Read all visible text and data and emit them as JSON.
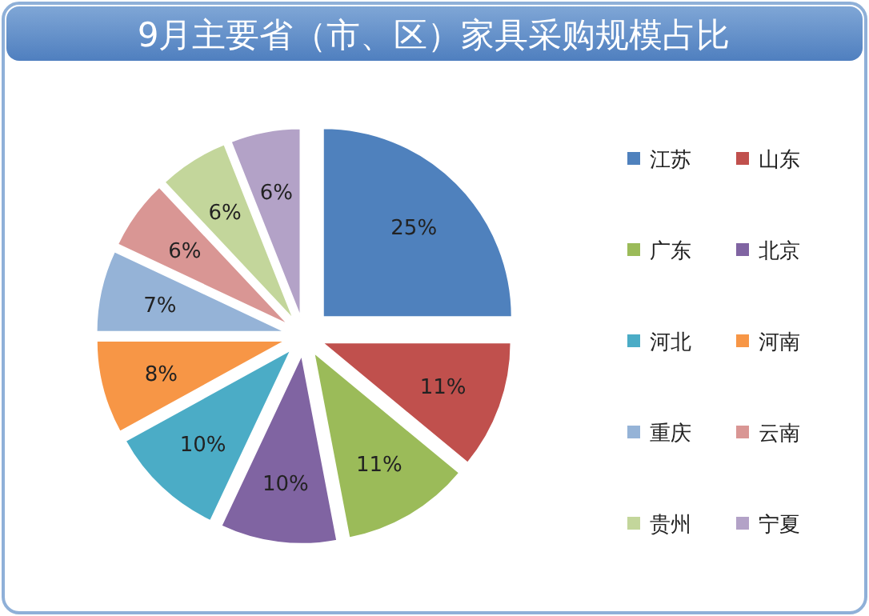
{
  "chart_data": {
    "type": "pie",
    "title": "9月主要省（市、区）家具采购规模占比",
    "categories": [
      "江苏",
      "山东",
      "广东",
      "北京",
      "河北",
      "河南",
      "重庆",
      "云南",
      "贵州",
      "宁夏"
    ],
    "values": [
      25,
      11,
      11,
      10,
      10,
      8,
      7,
      6,
      6,
      6
    ],
    "value_labels": [
      "25%",
      "11%",
      "11%",
      "10%",
      "10%",
      "8%",
      "7%",
      "6%",
      "6%",
      "6%"
    ],
    "colors": [
      "#4f81bd",
      "#c0504d",
      "#9bbb59",
      "#8064a2",
      "#4bacc6",
      "#f79646",
      "#95b3d7",
      "#d99694",
      "#c3d69b",
      "#b3a2c7"
    ],
    "legend": "right"
  }
}
